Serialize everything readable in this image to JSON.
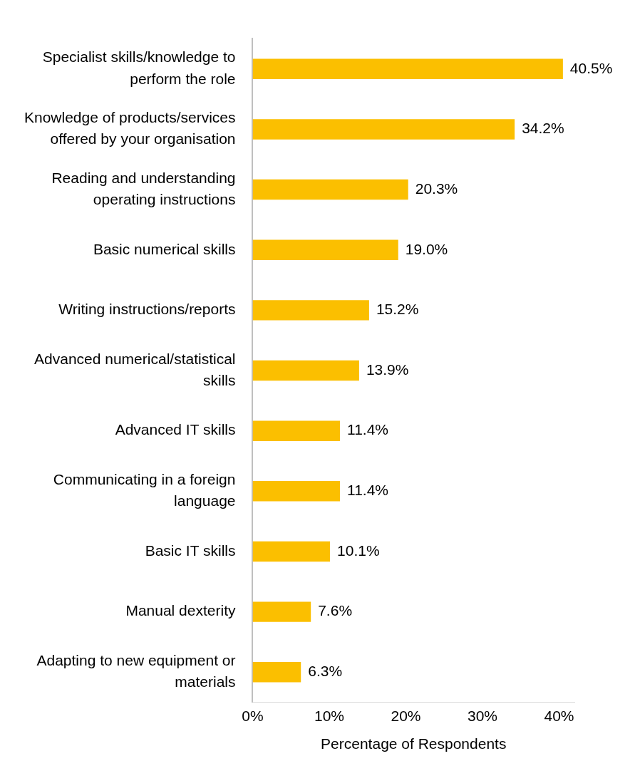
{
  "chart_data": {
    "type": "bar",
    "orientation": "horizontal",
    "xlabel": "Percentage of Respondents",
    "categories": [
      "Specialist skills/knowledge to perform the role",
      "Knowledge of products/services offered by your organisation",
      "Reading and understanding operating instructions",
      "Basic numerical skills",
      "Writing instructions/reports",
      "Advanced numerical/statistical skills",
      "Advanced IT skills",
      "Communicating in a foreign language",
      "Basic IT skills",
      "Manual dexterity",
      "Adapting to new equipment or materials"
    ],
    "values": [
      40.5,
      34.2,
      20.3,
      19.0,
      15.2,
      13.9,
      11.4,
      11.4,
      10.1,
      7.6,
      6.3
    ],
    "value_labels": [
      "40.5%",
      "34.2%",
      "20.3%",
      "19.0%",
      "15.2%",
      "13.9%",
      "11.4%",
      "11.4%",
      "10.1%",
      "7.6%",
      "6.3%"
    ],
    "color": "#fbbf00",
    "xlim": [
      0,
      42
    ],
    "xticks": [
      {
        "value": 0,
        "label": "0%"
      },
      {
        "value": 10,
        "label": "10%"
      },
      {
        "value": 20,
        "label": "20%"
      },
      {
        "value": 30,
        "label": "30%"
      },
      {
        "value": 40,
        "label": "40%"
      }
    ],
    "grid": false,
    "legend": false
  }
}
